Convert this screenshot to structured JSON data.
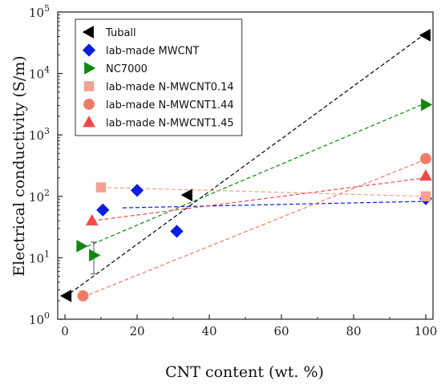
{
  "chart_data": {
    "type": "scatter",
    "title": "",
    "xlabel": "CNT content (wt. %)",
    "ylabel": "Electrical conductivity (S/m)",
    "xlim": [
      -2,
      102
    ],
    "ylim": [
      1,
      100000
    ],
    "yscale": "log",
    "xticks": [
      "0",
      "20",
      "40",
      "60",
      "80",
      "100"
    ],
    "xtick_values": [
      0,
      20,
      40,
      60,
      80,
      100
    ],
    "yticks": [
      "10^0",
      "10^1",
      "10^2",
      "10^3",
      "10^4",
      "10^5"
    ],
    "ytick_base": [
      "10",
      "10",
      "10",
      "10",
      "10",
      "10"
    ],
    "ytick_exp": [
      "0",
      "1",
      "2",
      "3",
      "4",
      "5"
    ],
    "ytick_values": [
      1,
      10,
      100,
      1000,
      10000,
      100000
    ],
    "grid": false,
    "legend": "top-left",
    "series": [
      {
        "name": "Tuball",
        "marker": "triangle-left",
        "color": "#000000",
        "x": [
          0.5,
          34,
          100
        ],
        "y": [
          2.4,
          105,
          42000
        ],
        "trend": {
          "x": [
            0,
            100
          ],
          "y": [
            2.3,
            45000
          ],
          "color": "#000000"
        },
        "error": []
      },
      {
        "name": "lab-made MWCNT",
        "marker": "diamond",
        "color": "#0a1ee0",
        "x": [
          10.5,
          20,
          31,
          100
        ],
        "y": [
          60,
          125,
          27,
          92
        ],
        "trend": {
          "x": [
            16,
            100
          ],
          "y": [
            65,
            83
          ],
          "color": "#0a1ee0"
        },
        "error": []
      },
      {
        "name": "NC7000",
        "marker": "triangle-right",
        "color": "#0f8a0f",
        "x": [
          4.5,
          8,
          100
        ],
        "y": [
          15.5,
          11,
          3100
        ],
        "trend": {
          "x": [
            4.5,
            100
          ],
          "y": [
            14,
            3300
          ],
          "color": "#0f8a0f"
        },
        "error": [
          {
            "x": 8,
            "low": 5.5,
            "high": 18
          }
        ]
      },
      {
        "name": "lab-made N-MWCNT0.14",
        "marker": "square",
        "color": "#f4a090",
        "x": [
          10,
          100
        ],
        "y": [
          140,
          100
        ],
        "trend": {
          "x": [
            10,
            100
          ],
          "y": [
            140,
            100
          ],
          "color": "#f4a090"
        },
        "error": []
      },
      {
        "name": "lab-made N-MWCNT1.44",
        "marker": "circle",
        "color": "#f07a68",
        "x": [
          5,
          100
        ],
        "y": [
          2.4,
          410
        ],
        "trend": {
          "x": [
            5,
            100
          ],
          "y": [
            2.3,
            400
          ],
          "color": "#f07a68"
        },
        "error": []
      },
      {
        "name": "lab-made N-MWCNT1.45",
        "marker": "triangle-up",
        "color": "#f04a48",
        "x": [
          7.5,
          100
        ],
        "y": [
          40,
          215
        ],
        "trend": {
          "x": [
            7.5,
            100
          ],
          "y": [
            40,
            200
          ],
          "color": "#f04a48"
        },
        "error": []
      }
    ]
  }
}
